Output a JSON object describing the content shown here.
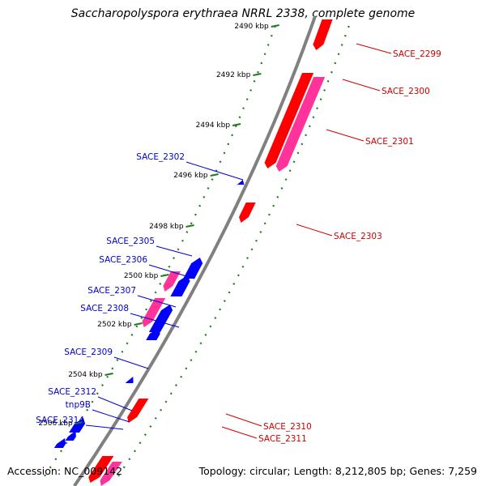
{
  "title": "Saccharopolyspora erythraea NRRL 2338, complete genome",
  "footer": {
    "accession": "Accession: NC_009142",
    "topology": "Topology: circular; Length: 8,212,805 bp; Genes: 7,259"
  },
  "colors": {
    "backbone": "#808080",
    "ruler": "#1f7a1f",
    "forward_gene": "#ff0000",
    "forward_cds": "#ff3399",
    "reverse_gene": "#0000ff",
    "forward_label": "#cc0000",
    "reverse_label": "#0000cc"
  },
  "ticks": [
    {
      "label": "2490 kbp"
    },
    {
      "label": "2492 kbp"
    },
    {
      "label": "2494 kbp"
    },
    {
      "label": "2496 kbp"
    },
    {
      "label": "2498 kbp"
    },
    {
      "label": "2500 kbp"
    },
    {
      "label": "2502 kbp"
    },
    {
      "label": "2504 kbp"
    },
    {
      "label": "2506 kbp"
    }
  ],
  "forward_labels": [
    "SACE_2299",
    "SACE_2300",
    "SACE_2301",
    "SACE_2303",
    "SACE_2310",
    "SACE_2311"
  ],
  "reverse_labels": [
    "SACE_2302",
    "SACE_2305",
    "SACE_2306",
    "SACE_2307",
    "SACE_2308",
    "SACE_2309",
    "SACE_2312",
    "tnp9B",
    "SACE_2314"
  ]
}
